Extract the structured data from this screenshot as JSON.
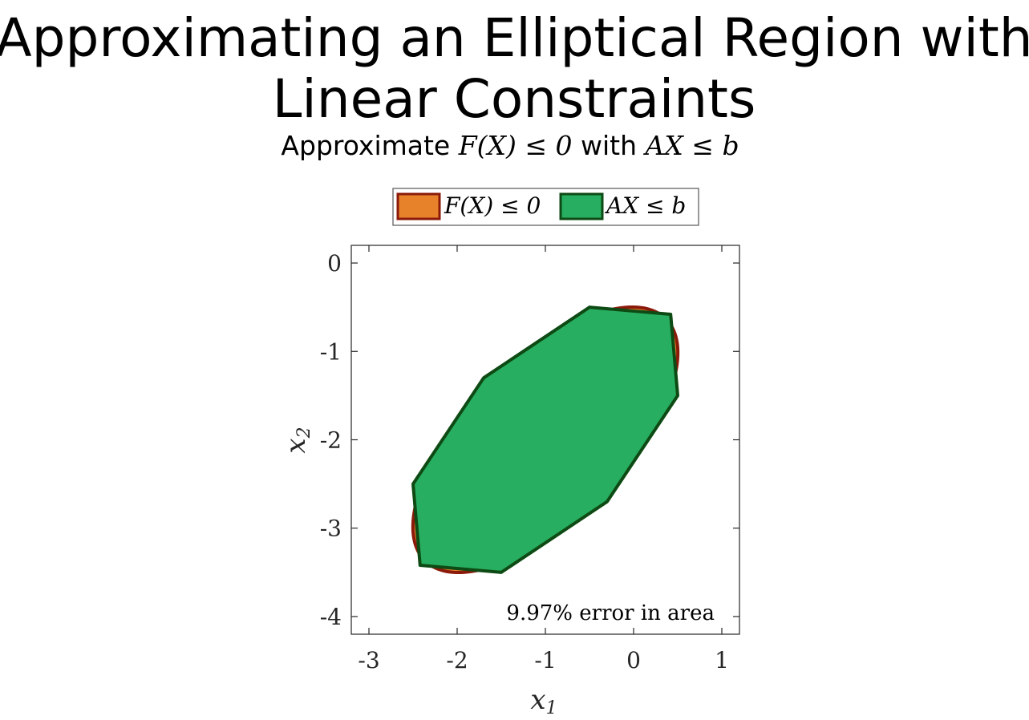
{
  "chart_data": {
    "type": "area",
    "title_line1": "Approximating an Elliptical Region with",
    "title_line2": "Linear Constraints",
    "subtitle": {
      "prefix": "Approximate ",
      "expr1": "F(X) ≤ 0",
      "middle": " with ",
      "expr2": "AX ≤ b"
    },
    "xlabel": "x",
    "xlabel_sub": "1",
    "ylabel": "x",
    "ylabel_sub": "2",
    "xlim": [
      -3.2,
      1.2
    ],
    "ylim": [
      -4.2,
      0.2
    ],
    "xticks": [
      -3,
      -2,
      -1,
      0,
      1
    ],
    "yticks": [
      0,
      -1,
      -2,
      -3,
      -4
    ],
    "legend_position": "top-center",
    "annotation": "9.97% error in area",
    "series": [
      {
        "name": "F(X) ≤ 0",
        "kind": "ellipse",
        "center": [
          -1.0,
          -2.0
        ],
        "semi_axes": [
          1.933,
          0.88
        ],
        "angle_deg": 45,
        "fill": "#E8822A",
        "stroke": "#8B1A0A"
      },
      {
        "name": "AX ≤ b",
        "kind": "polygon",
        "vertices": [
          [
            -0.5,
            -0.5
          ],
          [
            0.42,
            -0.58
          ],
          [
            0.5,
            -1.5
          ],
          [
            -0.3,
            -2.7
          ],
          [
            -1.5,
            -3.5
          ],
          [
            -2.42,
            -3.42
          ],
          [
            -2.5,
            -2.5
          ],
          [
            -1.7,
            -1.3
          ]
        ],
        "fill": "#27AE60",
        "stroke": "#0E4A14"
      }
    ]
  }
}
